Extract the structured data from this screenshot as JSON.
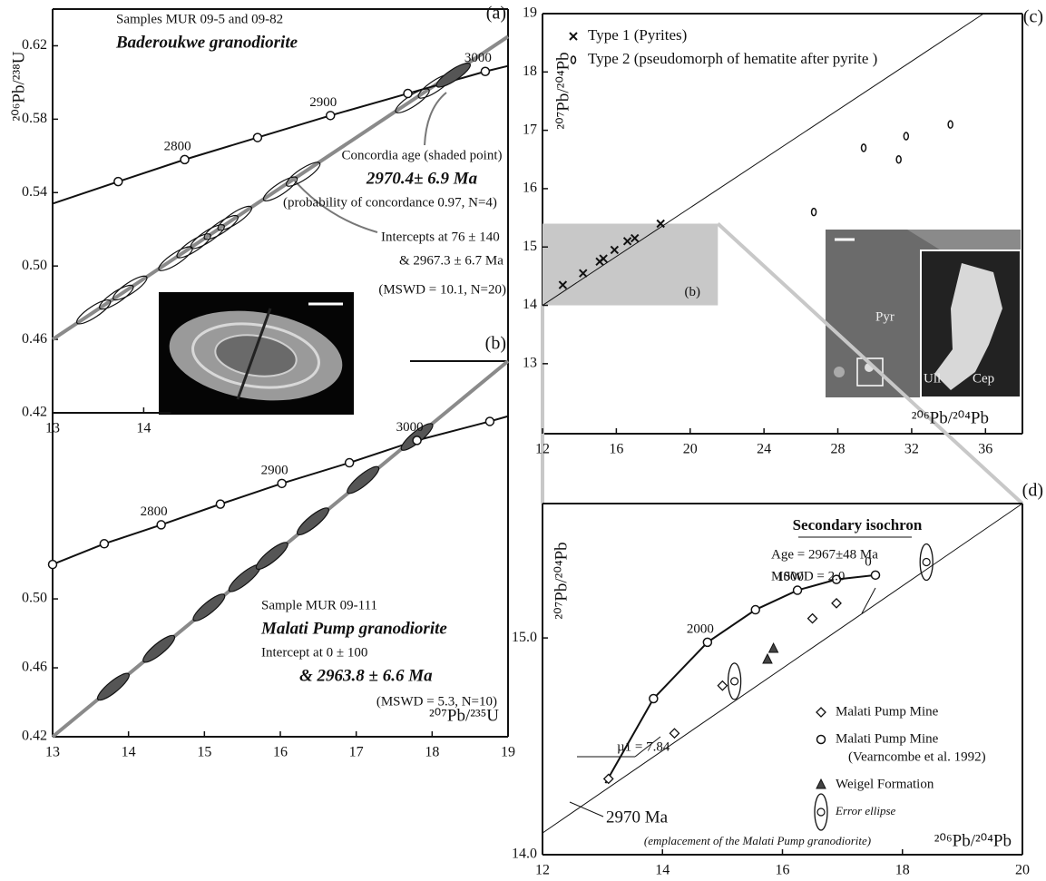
{
  "chart_data": [
    {
      "type": "scatter",
      "panel_label": "(a)",
      "y_label": "²⁰⁶Pb/²³⁸U",
      "xlim": [
        13,
        18
      ],
      "ylim": [
        0.42,
        0.64
      ],
      "xticks": [
        13,
        14
      ],
      "yticks": [
        0.42,
        0.46,
        {
          "value": 0.5,
          "label": "0.50"
        },
        0.54,
        0.58,
        0.62
      ],
      "curves": [
        {
          "x": [
            13,
            18
          ],
          "y": [
            0.46,
            0.625
          ],
          "color": "#8a8a8a",
          "width": 4
        },
        {
          "x": [
            13,
            13.72,
            14.45,
            15.25,
            16.05,
            16.9,
            17.75,
            18
          ],
          "y": [
            0.534,
            0.546,
            0.558,
            0.57,
            0.582,
            0.594,
            0.606,
            0.609
          ],
          "color": "#111111",
          "width": 2
        }
      ],
      "error_ellipses": [
        {
          "x": [
            13.45,
            13.7,
            13.85,
            14.35,
            14.55,
            14.7,
            14.85,
            15.0,
            15.5,
            15.75,
            16.95,
            17.2
          ],
          "y": [
            0.475,
            0.483,
            0.488,
            0.504,
            0.511,
            0.516,
            0.521,
            0.526,
            0.542,
            0.55,
            0.59,
            0.598
          ],
          "color": "none"
        },
        {
          "x": [
            17.4
          ],
          "y": [
            0.604
          ],
          "color": "#555555"
        }
      ],
      "series": [
        {
          "marker": "circle",
          "color": "#ffffff",
          "x": [
            13.72,
            14.45,
            15.25,
            16.05,
            16.9,
            17.75
          ],
          "y": [
            0.546,
            0.558,
            0.57,
            0.582,
            0.594,
            0.606
          ],
          "labels": [
            null,
            2800,
            null,
            2900,
            null,
            3000
          ]
        }
      ],
      "annotations": [
        "Samples MUR 09-5 and 09-82",
        "Baderoukwe granodiorite",
        "Concordia age (shaded point)",
        "2970.4± 6.9 Ma",
        "(probability of concordance 0.97, N=4)",
        "Intercepts at 76 ± 140",
        "& 2967.3 ± 6.7  Ma",
        "(MSWD = 10.1, N=20)"
      ]
    },
    {
      "type": "scatter",
      "panel_label": "(b)",
      "x_label": "²⁰⁷Pb/²³⁵U",
      "xlim": [
        13,
        19
      ],
      "ylim": [
        0.42,
        0.638
      ],
      "xticks": [
        13,
        14,
        15,
        16,
        17,
        18,
        19
      ],
      "yticks": [
        0.42,
        0.46,
        {
          "value": 0.5,
          "label": "0.50"
        }
      ],
      "curves": [
        {
          "x": [
            13,
            19
          ],
          "y": [
            0.42,
            0.638
          ],
          "color": "#8a8a8a",
          "width": 4
        },
        {
          "x": [
            13,
            13.68,
            14.43,
            15.21,
            16.02,
            16.91,
            17.8,
            18.76,
            19
          ],
          "y": [
            0.52,
            0.532,
            0.543,
            0.555,
            0.567,
            0.579,
            0.592,
            0.603,
            0.606
          ],
          "color": "#111111",
          "width": 2
        }
      ],
      "error_ellipses": [
        {
          "x": [
            13.8,
            14.4,
            15.06,
            15.53,
            15.89,
            16.43,
            17.09,
            17.8
          ],
          "y": [
            0.449,
            0.471,
            0.495,
            0.512,
            0.525,
            0.545,
            0.569,
            0.594
          ],
          "color": "#555555"
        }
      ],
      "series": [
        {
          "marker": "circle",
          "color": "#ffffff",
          "x": [
            13,
            13.68,
            14.43,
            15.21,
            16.02,
            16.91,
            17.8,
            18.76
          ],
          "y": [
            0.52,
            0.532,
            0.543,
            0.555,
            0.567,
            0.579,
            0.592,
            0.603
          ],
          "labels": [
            null,
            null,
            2800,
            null,
            2900,
            null,
            3000,
            null
          ]
        }
      ],
      "annotations": [
        "Sample MUR 09-111",
        "Malati Pump granodiorite",
        "Intercept at 0 ± 100",
        "& 2963.8 ± 6.6 Ma",
        "(MSWD = 5.3, N=10)"
      ]
    },
    {
      "type": "scatter",
      "panel_label": "(c)",
      "x_label": "²⁰⁶Pb/²⁰⁴Pb",
      "y_label": "²⁰⁷Pb/²⁰⁴Pb",
      "xlim": [
        12,
        38
      ],
      "ylim": [
        11.8,
        19
      ],
      "xticks": [
        12,
        16,
        20,
        24,
        28,
        32,
        36
      ],
      "yticks": [
        13,
        14,
        15,
        16,
        17,
        18,
        19
      ],
      "curves": [
        {
          "x": [
            12,
            35.9
          ],
          "y": [
            14.0,
            19
          ],
          "color": "#111111",
          "width": 1
        }
      ],
      "zoom_box": {
        "x": [
          12,
          21.5
        ],
        "y": [
          14,
          15.4
        ],
        "label": "(b)",
        "color": "#c8c8c8"
      },
      "series": [
        {
          "name": "Type 1 (Pyrites)",
          "marker": "x",
          "color": "#111111",
          "x": [
            13.1,
            14.2,
            15.1,
            15.3,
            15.9,
            16.6,
            17.0,
            18.4
          ],
          "y": [
            14.35,
            14.55,
            14.75,
            14.8,
            14.95,
            15.1,
            15.15,
            15.4
          ]
        },
        {
          "name": "Type 2 (pseudomorph of hematite after pyrite )",
          "marker": "o",
          "color": "#111111",
          "x": [
            26.7,
            29.4,
            31.3,
            31.7,
            34.1
          ],
          "y": [
            15.6,
            16.7,
            16.5,
            16.9,
            17.1
          ]
        }
      ],
      "inset_labels": [
        "Pyr",
        "Ull",
        "Cep"
      ]
    },
    {
      "type": "scatter",
      "panel_label": "(d)",
      "x_label": "²⁰⁶Pb/²⁰⁴Pb",
      "y_label": "²⁰⁷Pb/²⁰⁴Pb",
      "xlim": [
        12,
        20
      ],
      "ylim": [
        14,
        15.62
      ],
      "xticks": [
        12,
        14,
        16,
        18,
        20
      ],
      "yticks": [
        {
          "value": 14,
          "label": "14.0"
        },
        {
          "value": 15,
          "label": "15.0"
        }
      ],
      "curves": [
        {
          "x": [
            12,
            20
          ],
          "y": [
            14.1,
            15.62
          ],
          "color": "#111111",
          "width": 1
        },
        {
          "x": [
            13.05,
            13.85,
            14.75,
            15.55,
            16.25,
            16.9,
            17.55
          ],
          "y": [
            14.33,
            14.72,
            14.98,
            15.13,
            15.22,
            15.27,
            15.29
          ],
          "color": "#111111",
          "width": 2
        }
      ],
      "series": [
        {
          "name": "Malati Pump Mine",
          "marker": "diamond",
          "color": "#ffffff",
          "x": [
            13.1,
            14.2,
            15.0,
            16.5,
            16.9
          ],
          "y": [
            14.35,
            14.56,
            14.78,
            15.09,
            15.16
          ]
        },
        {
          "name": "Malati Pump Mine",
          "note": "(Vearncombe et al. 1992)",
          "marker": "circle",
          "color": "#ffffff",
          "x": [
            13.85,
            14.75,
            15.55,
            16.25,
            16.9,
            17.55
          ],
          "y": [
            14.72,
            14.98,
            15.13,
            15.22,
            15.27,
            15.29
          ],
          "labels": [
            null,
            2000,
            null,
            1000,
            null,
            0
          ]
        },
        {
          "name": "Weigel Formation",
          "marker": "triangle",
          "color": "#444444",
          "x": [
            15.75,
            15.85
          ],
          "y": [
            14.9,
            14.95
          ]
        },
        {
          "name": "Error ellipse",
          "marker": "errorellipse",
          "color": "#ffffff",
          "x": [
            15.2,
            18.4
          ],
          "y": [
            14.8,
            15.35
          ]
        }
      ],
      "annotations": [
        "Secondary isochron",
        "Age = 2967±48 Ma",
        "MSWD = 2.0",
        "µ1 = 7.84",
        "2970 Ma",
        "(emplacement of the Malati Pump granodiorite)"
      ]
    }
  ]
}
